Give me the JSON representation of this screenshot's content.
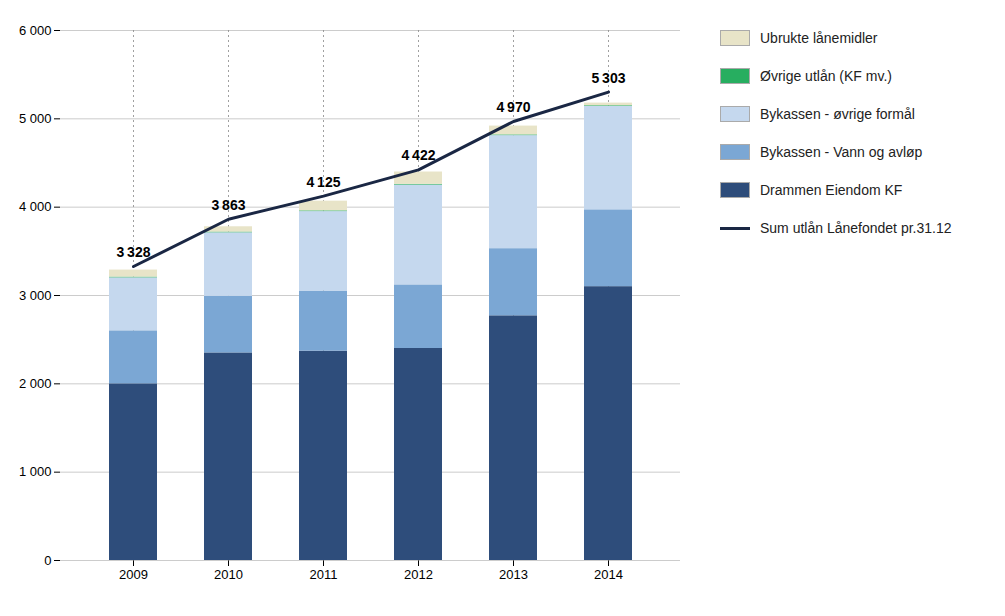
{
  "chart_data": {
    "type": "bar",
    "stacked": true,
    "grid": true,
    "data_labels": true,
    "categories": [
      "2009",
      "2010",
      "2011",
      "2012",
      "2013",
      "2014"
    ],
    "series": [
      {
        "name": "Drammen Eiendom KF",
        "color": "#2E4D7B",
        "values": [
          2000,
          2350,
          2370,
          2400,
          2770,
          3100
        ]
      },
      {
        "name": "Bykassen - Vann og avløp",
        "color": "#7BA7D4",
        "values": [
          600,
          640,
          680,
          720,
          760,
          870
        ]
      },
      {
        "name": "Bykassen - øvrige formål",
        "color": "#C5D8EE",
        "values": [
          600,
          720,
          900,
          1130,
          1280,
          1170
        ]
      },
      {
        "name": "Øvrige utlån (KF mv.)",
        "color": "#27AE60",
        "values": [
          8,
          8,
          8,
          8,
          8,
          8
        ]
      },
      {
        "name": "Ubrukte lånemidler",
        "color": "#E8E4C8",
        "values": [
          80,
          60,
          110,
          140,
          100,
          30
        ]
      },
      {
        "name": "Sum utlån Lånefondet pr.31.12",
        "type": "line",
        "color": "#1A2744",
        "values": [
          3328,
          3863,
          4125,
          4422,
          4970,
          5303
        ],
        "value_labels": [
          "3 328",
          "3 863",
          "4 125",
          "4 422",
          "4 970",
          "5 303"
        ]
      }
    ],
    "ylim": [
      0,
      6000
    ],
    "yticks": [
      0,
      {
        "value": 1000,
        "label": "1 000"
      },
      {
        "value": 2000,
        "label": "2 000"
      },
      {
        "value": 3000,
        "label": "3 000"
      },
      {
        "value": 4000,
        "label": "4 000"
      },
      {
        "value": 5000,
        "label": "5 000"
      },
      {
        "value": 6000,
        "label": "6 000"
      }
    ]
  }
}
